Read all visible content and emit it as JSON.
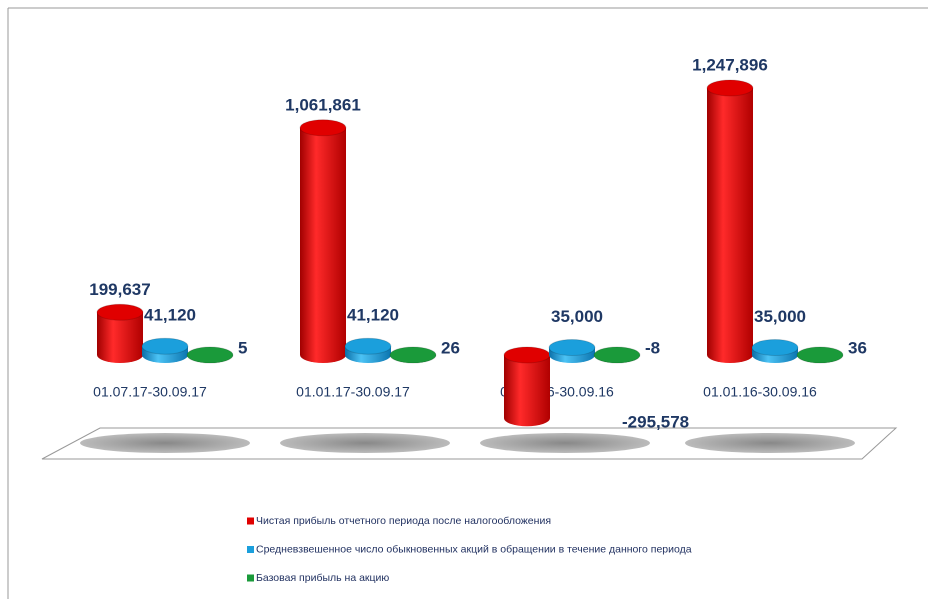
{
  "chart_data": {
    "type": "bar3d",
    "categories": [
      "01.07.17-30.09.17",
      "01.01.17-30.09.17",
      "01.07.16-30.09.16",
      "01.01.16-30.09.16"
    ],
    "series": [
      {
        "name": "Чистая прибыль отчетного периода после налогообложения",
        "color": "#e00000",
        "values": [
          199637,
          1061861,
          -295578,
          1247896
        ],
        "value_labels": [
          "199,637",
          "1,061,861",
          "-295,578",
          "1,247,896"
        ]
      },
      {
        "name": "Средневзвешенное число обыкновенных акций в обращении в течение данного периода",
        "color": "#1b9fdc",
        "values": [
          41120,
          41120,
          35000,
          35000
        ],
        "value_labels": [
          "41,120",
          "41,120",
          "35,000",
          "35,000"
        ]
      },
      {
        "name": "Базовая прибыль на акцию",
        "color": "#1a9a3a",
        "values": [
          5,
          26,
          -8,
          36
        ]
      }
    ],
    "legend": "bottom"
  }
}
